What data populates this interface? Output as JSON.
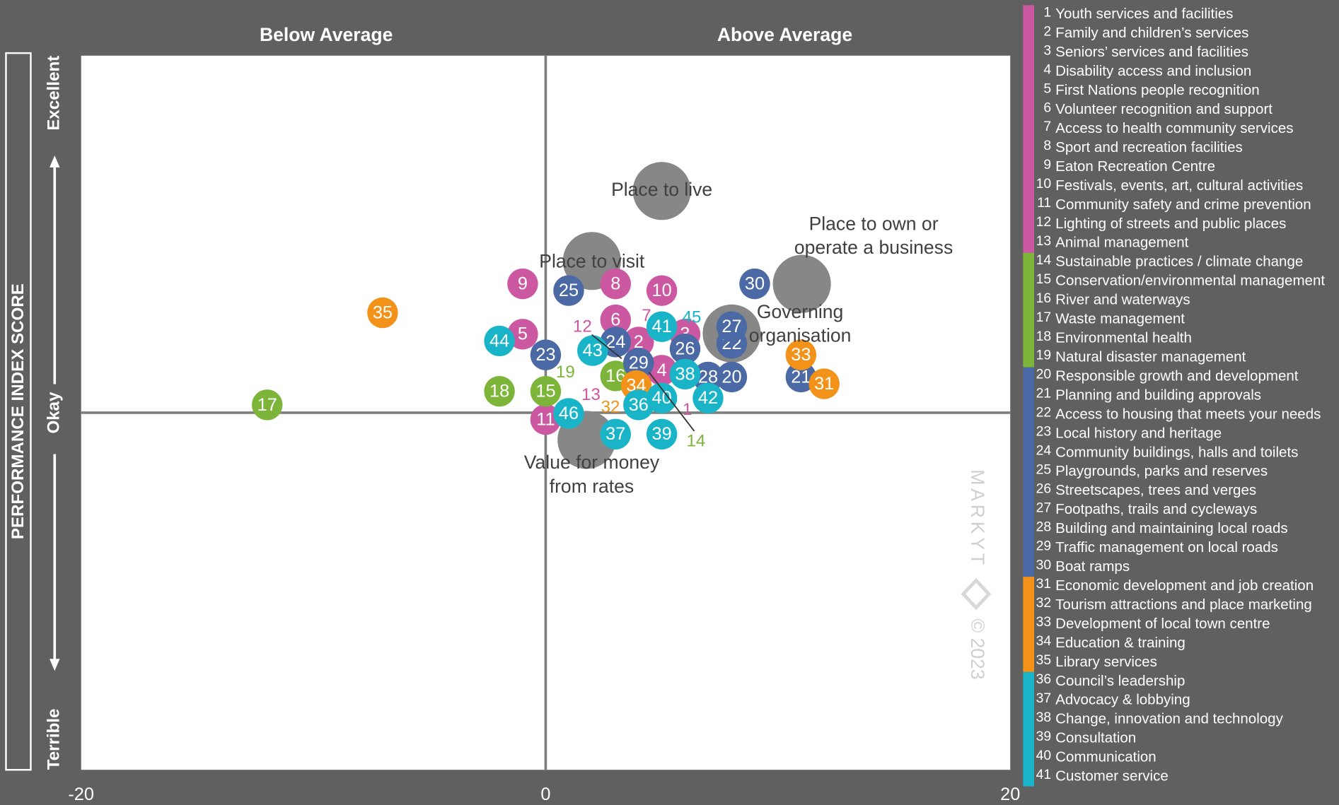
{
  "chart_data": {
    "type": "bubble",
    "headers": [
      "Below Average",
      "Above Average"
    ],
    "ylabel": "PERFORMANCE INDEX SCORE",
    "watermark": [
      "MARKYT",
      "© 2023"
    ],
    "xlim": [
      -20,
      20
    ],
    "xticks": [
      -20,
      0,
      20
    ],
    "ylim": [
      -100,
      100
    ],
    "yticks": [
      {
        "value": -100,
        "label": "Terrible"
      },
      {
        "value": 0,
        "label": "Okay"
      },
      {
        "value": 100,
        "label": "Excellent"
      }
    ],
    "overall": [
      {
        "label": [
          "Place to live"
        ],
        "x": 5.0,
        "y": 62.1,
        "color": "#878787"
      },
      {
        "label": [
          "Place to visit"
        ],
        "x": 1.99,
        "y": 42.5,
        "color": "#878787"
      },
      {
        "label": [
          "Place to own or",
          "operate a business"
        ],
        "x": 11.03,
        "y": 36.1,
        "color": "#878787"
      },
      {
        "label": [
          "Governing",
          "organisation"
        ],
        "x": 8.01,
        "y": 22.2,
        "color": "#878787"
      },
      {
        "label": [
          "Value for money",
          "from rates"
        ],
        "x": 1.76,
        "y": -7.6,
        "color": "#878787"
      }
    ],
    "groups": [
      {
        "color": "#cc58a2",
        "items": [
          {
            "label": "1",
            "name": "Youth services and facilities",
            "x": 6.1,
            "y": 0.7
          },
          {
            "label": "2",
            "name": "Family and children’s services",
            "x": 4.0,
            "y": 19.8
          },
          {
            "label": "3",
            "name": "Seniors’ services and facilities",
            "x": 6.0,
            "y": 22.0
          },
          {
            "label": "4",
            "name": "Disability access and inclusion",
            "x": 5.0,
            "y": 11.9
          },
          {
            "label": "5",
            "name": "First Nations people recognition",
            "x": -0.99,
            "y": 22.0
          },
          {
            "label": "6",
            "name": "Volunteer recognition and support",
            "x": 3.01,
            "y": 26.0
          },
          {
            "label": "7",
            "name": "Access to health community services",
            "x": 4.34,
            "y": 27.0
          },
          {
            "label": "8",
            "name": "Sport and recreation facilities",
            "x": 3.01,
            "y": 36.1
          },
          {
            "label": "9",
            "name": "Eaton Recreation Centre",
            "x": -0.99,
            "y": 36.1
          },
          {
            "label": "10",
            "name": "Festivals, events, art, cultural activities",
            "x": 5.0,
            "y": 34.2
          },
          {
            "label": "11",
            "name": "Community safety and crime prevention",
            "x": 0,
            "y": -1.9
          },
          {
            "label": "12",
            "name": "Lighting of streets and public places",
            "x": 1.58,
            "y": 23.9
          },
          {
            "label": "13",
            "name": "Animal management",
            "x": 1.95,
            "y": 4.8
          }
        ]
      },
      {
        "color": "#7cb53a",
        "items": [
          {
            "label": "14",
            "name": "Sustainable practices / climate change",
            "x": 6.47,
            "y": -8.1
          },
          {
            "label": "15",
            "name": "Conservation/environmental management",
            "x": 0,
            "y": 6.0
          },
          {
            "label": "16",
            "name": "River and waterways",
            "x": 3.01,
            "y": 10.3
          },
          {
            "label": "17",
            "name": "Waste management",
            "x": -11.99,
            "y": 2.2
          },
          {
            "label": "18",
            "name": "Environmental health",
            "x": -1.99,
            "y": 6.0
          },
          {
            "label": "19",
            "name": "Natural disaster management",
            "x": 0.85,
            "y": 11.2
          }
        ]
      },
      {
        "color": "#4b69a4",
        "items": [
          {
            "label": "20",
            "name": "Responsible growth and development",
            "x": 8.01,
            "y": 10.0
          },
          {
            "label": "21",
            "name": "Planning and building approvals",
            "x": 10.99,
            "y": 10.0
          },
          {
            "label": "22",
            "name": "Access to housing that meets your needs",
            "x": 8.01,
            "y": 19.4
          },
          {
            "label": "23",
            "name": "Local history and heritage",
            "x": 0,
            "y": 16.2
          },
          {
            "label": "24",
            "name": "Community buildings, halls and toilets",
            "x": 3.01,
            "y": 19.8
          },
          {
            "label": "25",
            "name": "Playgrounds, parks and reserves",
            "x": 0.99,
            "y": 34.2
          },
          {
            "label": "26",
            "name": "Streetscapes, trees and verges",
            "x": 6.0,
            "y": 17.9
          },
          {
            "label": "27",
            "name": "Footpaths, trails and cycleways",
            "x": 8.01,
            "y": 24.1
          },
          {
            "label": "28",
            "name": "Building and maintaining local roads",
            "x": 6.99,
            "y": 10.0
          },
          {
            "label": "29",
            "name": "Traffic management on local roads",
            "x": 4.0,
            "y": 13.9
          },
          {
            "label": "30",
            "name": "Boat ramps",
            "x": 9.0,
            "y": 36.1
          }
        ]
      },
      {
        "color": "#f29218",
        "items": [
          {
            "label": "31",
            "name": "Economic development and job creation",
            "x": 11.99,
            "y": 8.1
          },
          {
            "label": "32",
            "name": "Tourism attractions and place marketing",
            "x": 2.79,
            "y": 1.4
          },
          {
            "label": "33",
            "name": "Development of local town centre",
            "x": 10.99,
            "y": 16.2
          },
          {
            "label": "34",
            "name": "Education & training",
            "x": 3.9,
            "y": 7.6
          },
          {
            "label": "35",
            "name": "Library services",
            "x": -7.02,
            "y": 28.0
          }
        ]
      },
      {
        "color": "#1ab4c8",
        "items": [
          {
            "label": "36",
            "name": "Council’s leadership",
            "x": 4.0,
            "y": 2.2
          },
          {
            "label": "37",
            "name": "Advocacy & lobbying",
            "x": 3.01,
            "y": -6.0
          },
          {
            "label": "38",
            "name": "Change, innovation and technology",
            "x": 6.0,
            "y": 10.8
          },
          {
            "label": "39",
            "name": "Consultation",
            "x": 5.0,
            "y": -6.0
          },
          {
            "label": "40",
            "name": "Communication",
            "x": 5.0,
            "y": 4.1
          },
          {
            "label": "41",
            "name": "Customer service",
            "x": 5.0,
            "y": 24.1
          },
          {
            "label": "42",
            "x": 6.99,
            "y": 4.1
          },
          {
            "label": "43",
            "x": 2.02,
            "y": 17.4
          },
          {
            "label": "44",
            "x": -1.99,
            "y": 20.1
          },
          {
            "label": "45",
            "x": 6.29,
            "y": 26.5
          },
          {
            "label": "46",
            "x": 0.99,
            "y": -0.2
          }
        ]
      }
    ]
  }
}
